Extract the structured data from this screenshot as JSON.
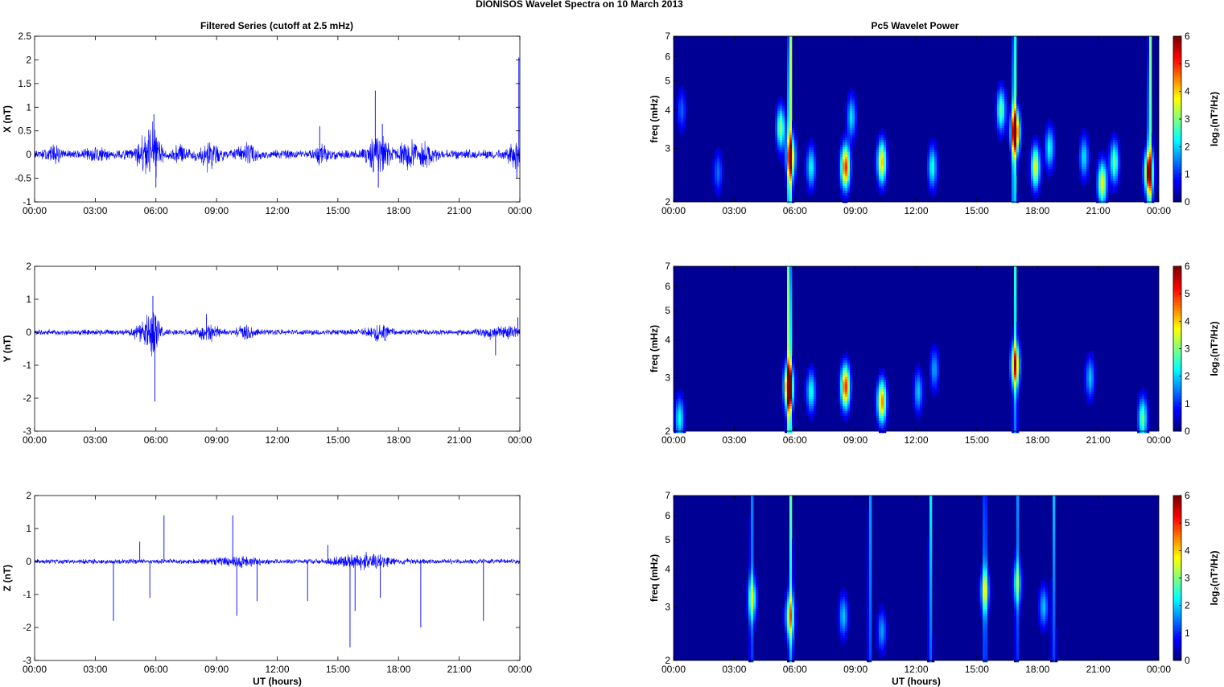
{
  "figure": {
    "title": "DIONISOS Wavelet Spectra on 10 March     2013",
    "left_title": "Filtered Series (cutoff at 2.5 mHz)",
    "right_title": "Pc5 Wavelet Power",
    "x_label": "UT (hours)",
    "colorbar_label": "log₂(nT²/Hz)",
    "time_ticks": [
      "00:00",
      "03:00",
      "06:00",
      "09:00",
      "12:00",
      "15:00",
      "18:00",
      "21:00",
      "00:00"
    ]
  },
  "chart_data": [
    {
      "type": "line",
      "name": "X",
      "ylabel": "X (nT)",
      "xlabel": "",
      "x_unit": "hours UT",
      "xlim": [
        0,
        24
      ],
      "ylim": [
        -1,
        2.5
      ],
      "yticks": [
        "-1",
        "-0.5",
        "0",
        "0.5",
        "1",
        "1.5",
        "2",
        "2.5"
      ],
      "color": "#0000ff",
      "noise_amplitude": 0.08,
      "bursts": [
        [
          1.0,
          0.3,
          0.12
        ],
        [
          3.0,
          0.4,
          0.1
        ],
        [
          5.5,
          0.5,
          0.25
        ],
        [
          5.9,
          0.3,
          0.35
        ],
        [
          7.2,
          0.3,
          0.15
        ],
        [
          8.6,
          0.5,
          0.22
        ],
        [
          10.5,
          0.4,
          0.15
        ],
        [
          14.2,
          0.3,
          0.15
        ],
        [
          17.0,
          0.5,
          0.3
        ],
        [
          18.5,
          0.5,
          0.18
        ],
        [
          19.3,
          0.5,
          0.16
        ],
        [
          23.8,
          0.3,
          0.25
        ]
      ],
      "spikes": [
        [
          5.9,
          0.85
        ],
        [
          6.0,
          -0.7
        ],
        [
          14.1,
          0.6
        ],
        [
          16.85,
          1.35
        ],
        [
          17.0,
          -0.7
        ],
        [
          17.2,
          0.65
        ],
        [
          23.85,
          -0.5
        ],
        [
          23.95,
          2.05
        ]
      ]
    },
    {
      "type": "line",
      "name": "Y",
      "ylabel": "Y (nT)",
      "xlabel": "",
      "x_unit": "hours UT",
      "xlim": [
        0,
        24
      ],
      "ylim": [
        -3,
        2
      ],
      "yticks": [
        "-3",
        "-2",
        "-1",
        "0",
        "1",
        "2"
      ],
      "color": "#0000ff",
      "noise_amplitude": 0.07,
      "bursts": [
        [
          5.5,
          0.5,
          0.3
        ],
        [
          5.9,
          0.3,
          0.5
        ],
        [
          8.6,
          0.5,
          0.22
        ],
        [
          10.4,
          0.4,
          0.15
        ],
        [
          17.0,
          0.5,
          0.22
        ],
        [
          22.5,
          0.5,
          0.12
        ],
        [
          23.5,
          0.4,
          0.12
        ]
      ],
      "spikes": [
        [
          5.85,
          1.1
        ],
        [
          5.95,
          -2.1
        ],
        [
          8.5,
          0.55
        ],
        [
          22.8,
          -0.7
        ],
        [
          23.9,
          0.45
        ]
      ]
    },
    {
      "type": "line",
      "name": "Z",
      "ylabel": "Z (nT)",
      "xlabel": "UT (hours)",
      "x_unit": "hours UT",
      "xlim": [
        0,
        24
      ],
      "ylim": [
        -3,
        2
      ],
      "yticks": [
        "-3",
        "-2",
        "-1",
        "0",
        "1",
        "2"
      ],
      "color": "#0000ff",
      "noise_amplitude": 0.06,
      "bursts": [
        [
          10.0,
          1.0,
          0.1
        ],
        [
          15.8,
          1.0,
          0.12
        ],
        [
          17.0,
          1.0,
          0.1
        ]
      ],
      "spikes": [
        [
          3.9,
          -1.8
        ],
        [
          5.2,
          0.6
        ],
        [
          5.7,
          -1.1
        ],
        [
          6.4,
          1.4
        ],
        [
          9.8,
          1.4
        ],
        [
          10.0,
          -1.65
        ],
        [
          11.0,
          -1.2
        ],
        [
          13.5,
          -1.2
        ],
        [
          14.5,
          0.5
        ],
        [
          15.6,
          -2.6
        ],
        [
          15.85,
          -1.5
        ],
        [
          17.1,
          -1.1
        ],
        [
          19.1,
          -2.0
        ],
        [
          22.2,
          -1.8
        ]
      ]
    },
    {
      "type": "heatmap",
      "name": "X wavelet power",
      "ylabel": "freq (mHz)",
      "xlabel": "",
      "xlim": [
        0,
        24
      ],
      "ylim": [
        2,
        7
      ],
      "y_scale": "log",
      "yticks": [
        "2",
        "3",
        "4",
        "5",
        "6",
        "7"
      ],
      "colorbar": {
        "range": [
          0,
          6
        ],
        "ticks": [
          "0",
          "1",
          "2",
          "3",
          "4",
          "5",
          "6"
        ],
        "colormap": "jet"
      },
      "features": [
        {
          "t": 0.4,
          "f": 4.0,
          "power": 1.2
        },
        {
          "t": 2.2,
          "f": 2.5,
          "power": 1.3
        },
        {
          "t": 5.3,
          "f": 3.5,
          "power": 3.0
        },
        {
          "t": 5.8,
          "f": 2.8,
          "power": 4.2
        },
        {
          "t": 6.8,
          "f": 2.6,
          "power": 2.2
        },
        {
          "t": 8.5,
          "f": 2.6,
          "power": 5.0
        },
        {
          "t": 8.8,
          "f": 3.8,
          "power": 2.0
        },
        {
          "t": 10.3,
          "f": 2.7,
          "power": 4.0
        },
        {
          "t": 12.8,
          "f": 2.6,
          "power": 2.3
        },
        {
          "t": 16.2,
          "f": 4.0,
          "power": 2.8
        },
        {
          "t": 16.9,
          "f": 3.4,
          "power": 5.3
        },
        {
          "t": 17.9,
          "f": 2.6,
          "power": 3.6
        },
        {
          "t": 18.6,
          "f": 3.0,
          "power": 2.2
        },
        {
          "t": 20.3,
          "f": 2.8,
          "power": 2.0
        },
        {
          "t": 21.2,
          "f": 2.3,
          "power": 3.7
        },
        {
          "t": 21.8,
          "f": 2.7,
          "power": 2.8
        },
        {
          "t": 23.5,
          "f": 2.5,
          "power": 4.8
        }
      ],
      "ridges": [
        {
          "t": 5.75,
          "power": 4.8
        },
        {
          "t": 16.85,
          "power": 3.8
        },
        {
          "t": 23.55,
          "power": 3.8
        }
      ]
    },
    {
      "type": "heatmap",
      "name": "Y wavelet power",
      "ylabel": "freq (mHz)",
      "xlabel": "",
      "xlim": [
        0,
        24
      ],
      "ylim": [
        2,
        7
      ],
      "y_scale": "log",
      "yticks": [
        "2",
        "3",
        "4",
        "5",
        "6",
        "7"
      ],
      "colorbar": {
        "range": [
          0,
          6
        ],
        "ticks": [
          "0",
          "1",
          "2",
          "3",
          "4",
          "5",
          "6"
        ],
        "colormap": "jet"
      },
      "features": [
        {
          "t": 0.3,
          "f": 2.2,
          "power": 2.2
        },
        {
          "t": 5.7,
          "f": 2.8,
          "power": 5.8
        },
        {
          "t": 6.8,
          "f": 2.7,
          "power": 2.3
        },
        {
          "t": 8.5,
          "f": 2.8,
          "power": 5.0
        },
        {
          "t": 10.3,
          "f": 2.5,
          "power": 4.4
        },
        {
          "t": 12.1,
          "f": 2.7,
          "power": 1.8
        },
        {
          "t": 12.9,
          "f": 3.2,
          "power": 1.6
        },
        {
          "t": 16.9,
          "f": 3.3,
          "power": 4.0
        },
        {
          "t": 20.6,
          "f": 3.0,
          "power": 1.8
        },
        {
          "t": 23.2,
          "f": 2.2,
          "power": 2.8
        }
      ],
      "ridges": [
        {
          "t": 5.72,
          "power": 5.2
        },
        {
          "t": 16.9,
          "power": 2.4
        }
      ]
    },
    {
      "type": "heatmap",
      "name": "Z wavelet power",
      "ylabel": "freq (mHz)",
      "xlabel": "UT (hours)",
      "xlim": [
        0,
        24
      ],
      "ylim": [
        2,
        7
      ],
      "y_scale": "log",
      "yticks": [
        "2",
        "3",
        "4",
        "5",
        "6",
        "7"
      ],
      "colorbar": {
        "range": [
          0,
          6
        ],
        "ticks": [
          "0",
          "1",
          "2",
          "3",
          "4",
          "5",
          "6"
        ],
        "colormap": "jet"
      },
      "features": [
        {
          "t": 3.9,
          "f": 3.2,
          "power": 2.5
        },
        {
          "t": 5.75,
          "f": 2.8,
          "power": 3.0
        },
        {
          "t": 8.4,
          "f": 2.8,
          "power": 1.8
        },
        {
          "t": 10.3,
          "f": 2.5,
          "power": 1.6
        },
        {
          "t": 15.4,
          "f": 3.4,
          "power": 2.5
        },
        {
          "t": 17.0,
          "f": 3.6,
          "power": 2.0
        },
        {
          "t": 18.3,
          "f": 3.0,
          "power": 1.8
        }
      ],
      "ridges": [
        {
          "t": 3.85,
          "power": 1.8
        },
        {
          "t": 5.8,
          "power": 2.8
        },
        {
          "t": 9.7,
          "power": 2.0
        },
        {
          "t": 12.7,
          "power": 2.2
        },
        {
          "t": 15.4,
          "power": 2.2
        },
        {
          "t": 17.0,
          "power": 1.6
        },
        {
          "t": 18.8,
          "power": 1.8
        }
      ]
    }
  ]
}
